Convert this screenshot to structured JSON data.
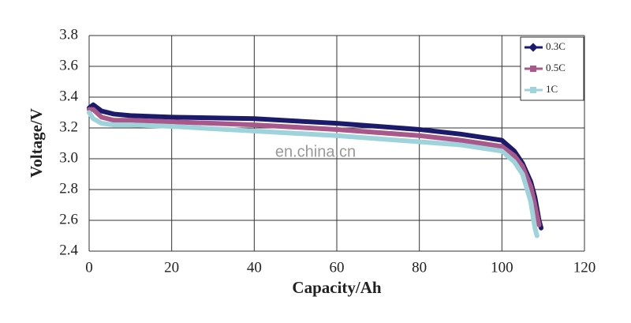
{
  "chart_data": {
    "type": "line",
    "x_label": "Capacity/Ah",
    "y_label": "Voltage/V",
    "watermark": "en.china.cn",
    "xlim": [
      0,
      120
    ],
    "xticks": [
      0,
      20,
      40,
      60,
      80,
      100,
      120
    ],
    "ylim": [
      2.4,
      3.8
    ],
    "yticks": [
      2.4,
      2.6,
      2.8,
      {
        "value": 3.0,
        "label": "3.0"
      },
      3.2,
      3.4,
      3.6,
      3.8
    ],
    "grid": true,
    "legend": "upper right",
    "series": [
      {
        "name": "0.3C",
        "color": "#1c1a6b",
        "x": [
          0,
          1,
          3,
          6,
          10,
          20,
          40,
          60,
          80,
          90,
          95,
          100,
          103,
          105,
          107,
          108,
          109,
          109.5
        ],
        "values": [
          3.33,
          3.35,
          3.31,
          3.29,
          3.28,
          3.27,
          3.26,
          3.23,
          3.19,
          3.16,
          3.14,
          3.12,
          3.05,
          2.97,
          2.85,
          2.75,
          2.6,
          2.55
        ]
      },
      {
        "name": "0.5C",
        "color": "#a8588a",
        "x": [
          0,
          1,
          3,
          6,
          10,
          20,
          40,
          60,
          80,
          90,
          95,
          100,
          103,
          105,
          107,
          108,
          109
        ],
        "values": [
          3.32,
          3.32,
          3.27,
          3.25,
          3.25,
          3.24,
          3.22,
          3.19,
          3.15,
          3.12,
          3.1,
          3.08,
          3.02,
          2.95,
          2.82,
          2.7,
          2.57
        ]
      },
      {
        "name": "1C",
        "color": "#9fd3dc",
        "x": [
          0,
          1,
          3,
          6,
          10,
          20,
          40,
          60,
          80,
          90,
          95,
          100,
          103,
          105,
          107,
          108,
          108.5
        ],
        "values": [
          3.3,
          3.26,
          3.23,
          3.22,
          3.22,
          3.21,
          3.18,
          3.15,
          3.11,
          3.09,
          3.07,
          3.05,
          2.98,
          2.9,
          2.72,
          2.55,
          2.5
        ]
      }
    ]
  }
}
